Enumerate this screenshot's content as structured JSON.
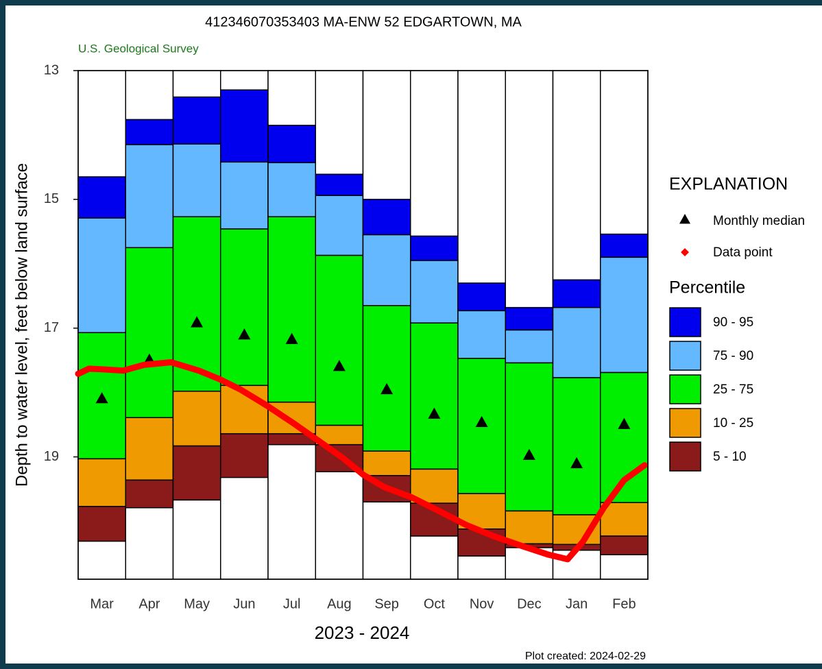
{
  "chart_data": {
    "type": "bar",
    "title": "412346070353403 MA-ENW   52 EDGARTOWN, MA",
    "subtitle": "U.S. Geological Survey",
    "ylabel": "Depth to water level, feet below land surface",
    "xlabel": "2023 - 2024",
    "note": "Plot created: 2024-02-29",
    "categories": [
      "Mar",
      "Apr",
      "May",
      "Jun",
      "Jul",
      "Aug",
      "Sep",
      "Oct",
      "Nov",
      "Dec",
      "Jan",
      "Feb"
    ],
    "ylim": [
      13,
      20.9
    ],
    "yticks": [
      13,
      15,
      17,
      19
    ],
    "y_inverted": true,
    "legend_title": "EXPLANATION",
    "percentile_title": "Percentile",
    "percentiles": [
      [
        14.65,
        13.76,
        13.41,
        13.3,
        13.85,
        14.61,
        15.0,
        15.57,
        16.3,
        16.68,
        16.25,
        15.54
      ],
      [
        15.29,
        14.15,
        14.14,
        14.42,
        14.43,
        14.94,
        15.55,
        15.95,
        16.73,
        17.03,
        16.68,
        15.9
      ],
      [
        17.07,
        15.75,
        15.27,
        15.46,
        15.27,
        15.87,
        16.65,
        16.92,
        17.47,
        17.54,
        17.77,
        17.69
      ],
      [
        19.03,
        18.39,
        17.98,
        17.89,
        18.15,
        18.51,
        18.91,
        19.19,
        19.57,
        19.84,
        19.9,
        19.71
      ],
      [
        19.77,
        19.36,
        18.83,
        18.64,
        18.64,
        18.81,
        19.29,
        19.72,
        20.12,
        20.35,
        20.36,
        20.23
      ],
      [
        20.31,
        19.79,
        19.67,
        19.32,
        18.81,
        19.23,
        19.7,
        20.23,
        20.54,
        20.41,
        20.45,
        20.52
      ]
    ],
    "bands": [
      {
        "name": "90 - 95",
        "color": "#0000ee"
      },
      {
        "name": "75 - 90",
        "color": "#63b8ff"
      },
      {
        "name": "25 - 75",
        "color": "#00ee00"
      },
      {
        "name": "10 - 25",
        "color": "#ee9a00"
      },
      {
        "name": "5 - 10",
        "color": "#8b1a1a"
      }
    ],
    "median": {
      "name": "Monthly median",
      "color": "#000000",
      "values": [
        18.09,
        17.49,
        16.91,
        17.1,
        17.17,
        17.59,
        17.95,
        18.33,
        18.46,
        18.97,
        19.1,
        18.49
      ]
    },
    "data_line": {
      "name": "Data point",
      "color": "#ff0000",
      "x": [
        0,
        0.23,
        0.52,
        0.95,
        1.39,
        1.96,
        2.54,
        2.97,
        3.41,
        3.99,
        4.56,
        5.14,
        5.58,
        6.01,
        6.45,
        7.03,
        7.6,
        8.18,
        8.75,
        9.33,
        9.91,
        10.31,
        10.63,
        11.07,
        11.5,
        11.93
      ],
      "values": [
        17.71,
        17.63,
        17.64,
        17.66,
        17.57,
        17.53,
        17.66,
        17.79,
        17.95,
        18.21,
        18.49,
        18.79,
        19.02,
        19.28,
        19.47,
        19.63,
        19.84,
        20.06,
        20.23,
        20.38,
        20.52,
        20.59,
        20.32,
        19.79,
        19.36,
        19.13
      ]
    }
  }
}
